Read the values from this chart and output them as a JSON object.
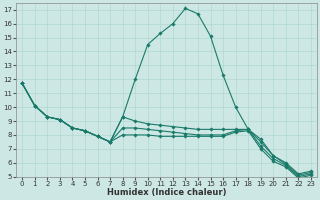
{
  "xlabel": "Humidex (Indice chaleur)",
  "bg_color": "#cde8e4",
  "grid_color": "#b0d8d0",
  "line_color": "#1a7a6a",
  "xlim": [
    -0.5,
    23.5
  ],
  "ylim": [
    5,
    17.5
  ],
  "xticks": [
    0,
    1,
    2,
    3,
    4,
    5,
    6,
    7,
    8,
    9,
    10,
    11,
    12,
    13,
    14,
    15,
    16,
    17,
    18,
    19,
    20,
    21,
    22,
    23
  ],
  "yticks": [
    5,
    6,
    7,
    8,
    9,
    10,
    11,
    12,
    13,
    14,
    15,
    16,
    17
  ],
  "lines": [
    {
      "x": [
        0,
        1,
        2,
        3,
        4,
        5,
        6,
        7,
        8,
        9,
        10,
        11,
        12,
        13,
        14,
        15,
        16,
        17,
        18,
        19,
        20,
        21,
        22,
        23
      ],
      "y": [
        11.7,
        10.1,
        9.3,
        9.1,
        8.5,
        8.3,
        7.9,
        7.5,
        9.3,
        12.0,
        14.5,
        15.3,
        16.0,
        17.1,
        16.7,
        15.1,
        12.3,
        10.0,
        8.4,
        7.7,
        6.5,
        5.9,
        5.1,
        5.3
      ]
    },
    {
      "x": [
        0,
        1,
        2,
        3,
        4,
        5,
        6,
        7,
        8,
        9,
        10,
        11,
        12,
        13,
        14,
        15,
        16,
        17,
        18,
        19,
        20,
        21,
        22,
        23
      ],
      "y": [
        11.7,
        10.1,
        9.3,
        9.1,
        8.5,
        8.3,
        7.9,
        7.5,
        9.3,
        9.0,
        8.8,
        8.7,
        8.6,
        8.5,
        8.4,
        8.4,
        8.4,
        8.4,
        8.4,
        7.5,
        6.5,
        6.0,
        5.2,
        5.4
      ]
    },
    {
      "x": [
        0,
        1,
        2,
        3,
        4,
        5,
        6,
        7,
        8,
        9,
        10,
        11,
        12,
        13,
        14,
        15,
        16,
        17,
        18,
        19,
        20,
        21,
        22,
        23
      ],
      "y": [
        11.7,
        10.1,
        9.3,
        9.1,
        8.5,
        8.3,
        7.9,
        7.5,
        8.5,
        8.5,
        8.4,
        8.3,
        8.2,
        8.1,
        8.0,
        8.0,
        8.0,
        8.3,
        8.4,
        7.2,
        6.3,
        5.8,
        5.0,
        5.2
      ]
    },
    {
      "x": [
        0,
        1,
        2,
        3,
        4,
        5,
        6,
        7,
        8,
        9,
        10,
        11,
        12,
        13,
        14,
        15,
        16,
        17,
        18,
        19,
        20,
        21,
        22,
        23
      ],
      "y": [
        11.7,
        10.1,
        9.3,
        9.1,
        8.5,
        8.3,
        7.9,
        7.5,
        8.0,
        8.0,
        8.0,
        7.9,
        7.9,
        7.9,
        7.9,
        7.9,
        7.9,
        8.2,
        8.3,
        7.0,
        6.1,
        5.7,
        4.9,
        5.1
      ]
    }
  ]
}
